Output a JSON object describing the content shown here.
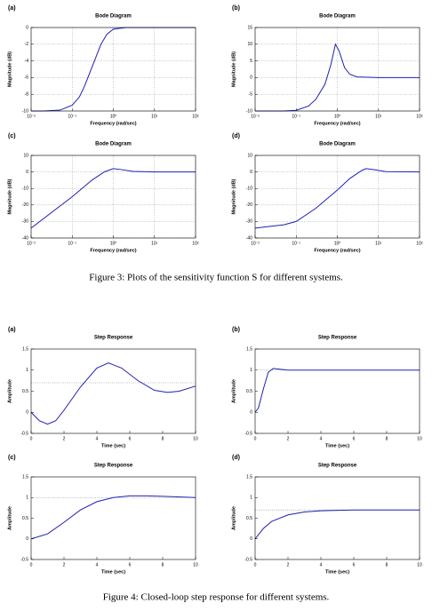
{
  "chart_data": [
    {
      "type": "line",
      "panel": "(a)",
      "title": "Bode Diagram",
      "xlabel": "Frequency (rad/sec)",
      "ylabel": "Magnitude (dB)",
      "xscale": "log",
      "grid": true,
      "x": [
        0.01,
        0.02,
        0.05,
        0.1,
        0.15,
        0.2,
        0.3,
        0.5,
        0.7,
        1,
        2,
        5,
        10,
        100
      ],
      "series": [
        {
          "color": "#1f1fb4",
          "values": [
            -10,
            -10,
            -9.9,
            -9.3,
            -8.3,
            -7,
            -4.8,
            -2,
            -0.8,
            -0.2,
            0,
            0,
            0,
            0
          ]
        }
      ],
      "xlim": [
        0.01,
        100
      ],
      "ylim": [
        -10,
        0
      ],
      "xticks": [
        {
          "value": 0.01,
          "label": "10⁻²"
        },
        {
          "value": 0.1,
          "label": "10⁻¹"
        },
        {
          "value": 1,
          "label": "10⁰"
        },
        {
          "value": 10,
          "label": "10¹"
        },
        {
          "value": 100,
          "label": "10²"
        }
      ],
      "yticks": [
        -10,
        -8,
        -6,
        -4,
        -2,
        0
      ]
    },
    {
      "type": "line",
      "panel": "(b)",
      "title": "Bode Diagram",
      "xlabel": "Frequency (rad/sec)",
      "ylabel": "Magnitude (dB)",
      "xscale": "log",
      "grid": true,
      "x": [
        0.01,
        0.05,
        0.1,
        0.2,
        0.3,
        0.5,
        0.7,
        0.9,
        1.1,
        1.5,
        2,
        3,
        10,
        100
      ],
      "series": [
        {
          "color": "#1f1fb4",
          "values": [
            -10,
            -10,
            -9.8,
            -8.5,
            -6.5,
            -2,
            4,
            10,
            8,
            3,
            1,
            0.2,
            0,
            0
          ]
        }
      ],
      "xlim": [
        0.01,
        100
      ],
      "ylim": [
        -10,
        15
      ],
      "xticks": [
        {
          "value": 0.01,
          "label": "10⁻²"
        },
        {
          "value": 0.1,
          "label": "10⁻¹"
        },
        {
          "value": 1,
          "label": "10⁰"
        },
        {
          "value": 10,
          "label": "10¹"
        },
        {
          "value": 100,
          "label": "10²"
        }
      ],
      "yticks": [
        -10,
        -5,
        0,
        5,
        10,
        15
      ]
    },
    {
      "type": "line",
      "panel": "(c)",
      "title": "Bode Diagram",
      "xlabel": "Frequency (rad/sec)",
      "ylabel": "Magnitude (dB)",
      "xscale": "log",
      "grid": true,
      "x": [
        0.01,
        0.1,
        0.3,
        0.6,
        1,
        1.5,
        3,
        10,
        100
      ],
      "series": [
        {
          "color": "#1f1fb4",
          "values": [
            -34,
            -15,
            -5,
            0,
            2,
            1.5,
            0.3,
            0,
            0
          ]
        }
      ],
      "xlim": [
        0.01,
        100
      ],
      "ylim": [
        -40,
        10
      ],
      "xticks": [
        {
          "value": 0.01,
          "label": "10⁻²"
        },
        {
          "value": 0.1,
          "label": "10⁻¹"
        },
        {
          "value": 1,
          "label": "10⁰"
        },
        {
          "value": 10,
          "label": "10¹"
        },
        {
          "value": 100,
          "label": "10²"
        }
      ],
      "yticks": [
        -40,
        -30,
        -20,
        -10,
        0,
        10
      ]
    },
    {
      "type": "line",
      "panel": "(d)",
      "title": "Bode Diagram",
      "xlabel": "Frequency (rad/sec)",
      "ylabel": "Magnitude (dB)",
      "xscale": "log",
      "grid": true,
      "x": [
        0.01,
        0.05,
        0.1,
        0.3,
        1,
        2,
        4,
        5,
        8,
        15,
        100
      ],
      "series": [
        {
          "color": "#1f1fb4",
          "values": [
            -34,
            -32,
            -30,
            -22,
            -11,
            -4,
            1,
            2,
            1.3,
            0.2,
            0
          ]
        }
      ],
      "xlim": [
        0.01,
        100
      ],
      "ylim": [
        -40,
        10
      ],
      "xticks": [
        {
          "value": 0.01,
          "label": "10⁻²"
        },
        {
          "value": 0.1,
          "label": "10⁻¹"
        },
        {
          "value": 1,
          "label": "10⁰"
        },
        {
          "value": 10,
          "label": "10¹"
        },
        {
          "value": 100,
          "label": "10²"
        }
      ],
      "yticks": [
        -40,
        -30,
        -20,
        -10,
        0,
        10
      ]
    },
    {
      "type": "line",
      "panel": "(a)",
      "title": "Step Response",
      "xlabel": "Time (sec)",
      "ylabel": "Amplitude",
      "grid": false,
      "reference": 0.7,
      "x": [
        0,
        0.5,
        1,
        1.5,
        2,
        3,
        4,
        4.7,
        5.5,
        6.5,
        7.5,
        8.3,
        9,
        10
      ],
      "series": [
        {
          "color": "#1f1fb4",
          "values": [
            0,
            -0.2,
            -0.28,
            -0.2,
            0.05,
            0.6,
            1.05,
            1.17,
            1.05,
            0.75,
            0.52,
            0.47,
            0.5,
            0.62
          ]
        }
      ],
      "xlim": [
        0,
        10
      ],
      "ylim": [
        -0.5,
        1.5
      ],
      "xticks": [
        0,
        2,
        4,
        6,
        8,
        10
      ],
      "yticks": [
        -0.5,
        0,
        0.5,
        1,
        1.5
      ]
    },
    {
      "type": "line",
      "panel": "(b)",
      "title": "Step Response",
      "xlabel": "Time (sec)",
      "ylabel": "Amplitude",
      "grid": false,
      "reference": 1,
      "x": [
        0,
        0.2,
        0.5,
        0.8,
        1.1,
        1.5,
        2,
        10
      ],
      "series": [
        {
          "color": "#1f1fb4",
          "values": [
            0,
            0.1,
            0.55,
            0.95,
            1.04,
            1.02,
            1,
            1
          ]
        }
      ],
      "xlim": [
        0,
        10
      ],
      "ylim": [
        -0.5,
        1.5
      ],
      "xticks": [
        0,
        2,
        4,
        6,
        8,
        10
      ],
      "yticks": [
        -0.5,
        0,
        0.5,
        1,
        1.5
      ]
    },
    {
      "type": "line",
      "panel": "(c)",
      "title": "Step Response",
      "xlabel": "Time (sec)",
      "ylabel": "Amplitude",
      "grid": false,
      "reference": 1,
      "x": [
        0,
        1,
        2,
        3,
        4,
        5,
        6,
        7,
        8,
        10
      ],
      "series": [
        {
          "color": "#1f1fb4",
          "values": [
            0,
            0.12,
            0.4,
            0.7,
            0.9,
            1.0,
            1.04,
            1.04,
            1.03,
            1.0
          ]
        }
      ],
      "xlim": [
        0,
        10
      ],
      "ylim": [
        -0.5,
        1.5
      ],
      "xticks": [
        0,
        2,
        4,
        6,
        8,
        10
      ],
      "yticks": [
        -0.5,
        0,
        0.5,
        1,
        1.5
      ]
    },
    {
      "type": "line",
      "panel": "(d)",
      "title": "Step Response",
      "xlabel": "Time (sec)",
      "ylabel": "Amplitude",
      "grid": false,
      "reference": 0.7,
      "x": [
        0,
        0.5,
        1,
        2,
        3,
        4,
        6,
        10
      ],
      "series": [
        {
          "color": "#1f1fb4",
          "values": [
            0,
            0.25,
            0.42,
            0.58,
            0.65,
            0.68,
            0.7,
            0.7
          ]
        }
      ],
      "xlim": [
        0,
        10
      ],
      "ylim": [
        -0.5,
        1.5
      ],
      "xticks": [
        0,
        2,
        4,
        6,
        8,
        10
      ],
      "yticks": [
        -0.5,
        0,
        0.5,
        1,
        1.5
      ]
    }
  ],
  "captions": [
    "Figure 3: Plots of the sensitivity function S for different systems.",
    "Figure 4: Closed-loop step response for different systems."
  ]
}
